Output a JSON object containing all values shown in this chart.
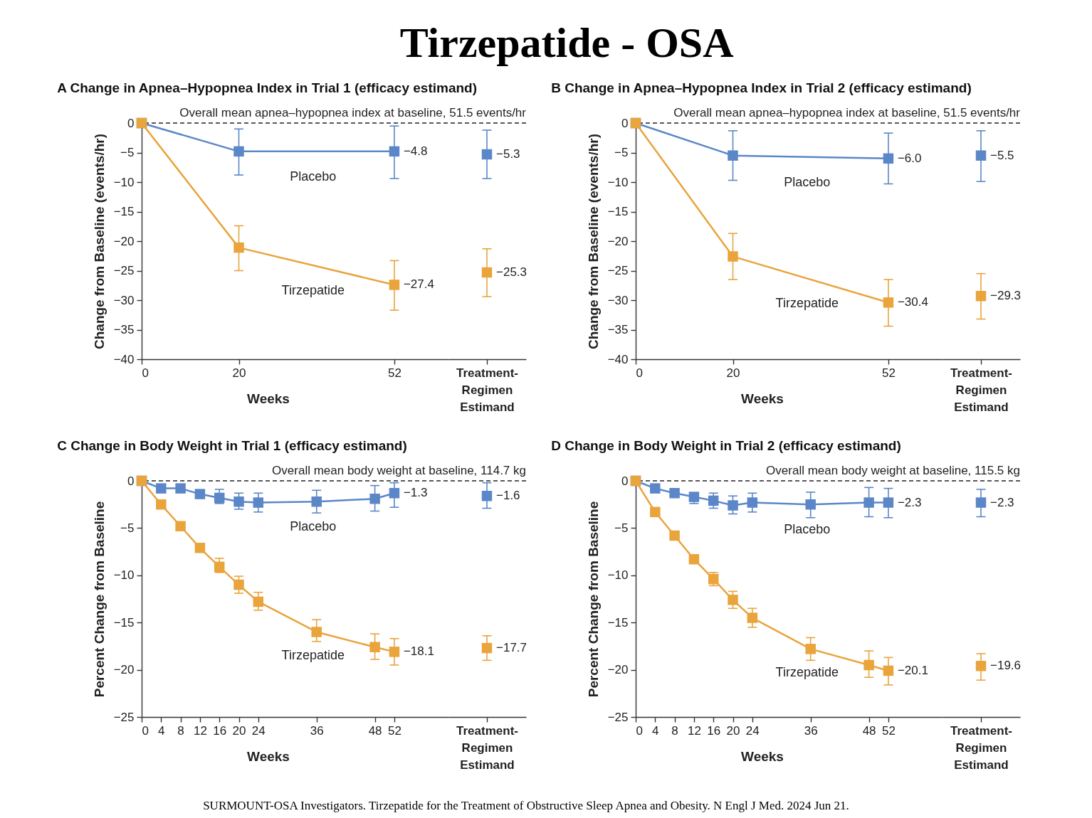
{
  "chart_data": [
    {
      "type": "other",
      "title": "Tirzepatide - OSA",
      "annotations": [
        "SURMOUNT-OSA Investigators. Tirzepatide for the Treatment of Obstructive Sleep Apnea and Obesity. N Engl J Med. 2024 Jun 21."
      ]
    },
    {
      "type": "line",
      "title": "A Change in Apnea–Hypopnea Index in Trial 1 (efficacy estimand)",
      "xlabel": "Weeks",
      "ylabel": "Change from Baseline (events/hr)",
      "xlim": [
        0,
        63
      ],
      "xticks": [
        0,
        20,
        52
      ],
      "ylim": [
        -40,
        0
      ],
      "yticks": [
        0,
        -5,
        -10,
        -15,
        -20,
        -25,
        -30,
        -35,
        -40
      ],
      "marker": "square",
      "line_style": "solid",
      "ref_lines": [
        {
          "axis": "y",
          "value": 0,
          "color": "#222222",
          "line_style": "dashed"
        }
      ],
      "series": [
        {
          "name": "Placebo",
          "color": "#5b87c8",
          "x": [
            0,
            20,
            52
          ],
          "values": [
            0,
            -4.8,
            -4.8
          ],
          "errors": [
            null,
            [
              -8.8,
              -1.0
            ],
            [
              -9.4,
              -0.5
            ]
          ],
          "value_labels": [
            null,
            null,
            "−4.8"
          ]
        },
        {
          "name": "Tirzepatide",
          "color": "#e9a43c",
          "x": [
            0,
            20,
            52
          ],
          "values": [
            0,
            -21.1,
            -27.4
          ],
          "errors": [
            null,
            [
              -25.0,
              -17.4
            ],
            [
              -31.7,
              -23.3
            ]
          ],
          "value_labels": [
            null,
            null,
            "−27.4"
          ]
        }
      ]
    },
    {
      "type": "scatter",
      "categories": [
        "Treatment-Regimen Estimand"
      ],
      "ylim": [
        -40,
        0
      ],
      "yticks": [
        0,
        -5,
        -10,
        -15,
        -20,
        -25,
        -30,
        -35,
        -40
      ],
      "tick_labels": "x",
      "marker": "square",
      "ref_lines": [
        {
          "axis": "y",
          "value": 0,
          "label": "Overall mean apnea–hypopnea index at baseline, 51.5 events/hr",
          "color": "#222222",
          "line_style": "dashed"
        }
      ],
      "series": [
        {
          "color": "#5b87c8",
          "values": [
            -5.3
          ],
          "errors": [
            [
              -9.4,
              -1.2
            ]
          ],
          "value_labels": [
            "−5.3"
          ]
        },
        {
          "color": "#e9a43c",
          "values": [
            -25.3
          ],
          "errors": [
            [
              -29.4,
              -21.3
            ]
          ],
          "value_labels": [
            "−25.3"
          ]
        }
      ]
    },
    {
      "type": "line",
      "title": "B Change in Apnea–Hypopnea Index in Trial 2 (efficacy estimand)",
      "xlabel": "Weeks",
      "ylabel": "Change from Baseline (events/hr)",
      "xlim": [
        0,
        63
      ],
      "xticks": [
        0,
        20,
        52
      ],
      "ylim": [
        -40,
        0
      ],
      "yticks": [
        0,
        -5,
        -10,
        -15,
        -20,
        -25,
        -30,
        -35,
        -40
      ],
      "marker": "square",
      "line_style": "solid",
      "ref_lines": [
        {
          "axis": "y",
          "value": 0,
          "color": "#222222",
          "line_style": "dashed"
        }
      ],
      "series": [
        {
          "name": "Placebo",
          "color": "#5b87c8",
          "x": [
            0,
            20,
            52
          ],
          "values": [
            0,
            -5.5,
            -6.0
          ],
          "errors": [
            null,
            [
              -9.7,
              -1.3
            ],
            [
              -10.3,
              -1.7
            ]
          ],
          "value_labels": [
            null,
            null,
            "−6.0"
          ]
        },
        {
          "name": "Tirzepatide",
          "color": "#e9a43c",
          "x": [
            0,
            20,
            52
          ],
          "values": [
            0,
            -22.6,
            -30.4
          ],
          "errors": [
            null,
            [
              -26.5,
              -18.7
            ],
            [
              -34.4,
              -26.5
            ]
          ],
          "value_labels": [
            null,
            null,
            "−30.4"
          ]
        }
      ]
    },
    {
      "type": "scatter",
      "categories": [
        "Treatment-Regimen Estimand"
      ],
      "ylim": [
        -40,
        0
      ],
      "yticks": [
        0,
        -5,
        -10,
        -15,
        -20,
        -25,
        -30,
        -35,
        -40
      ],
      "tick_labels": "x",
      "marker": "square",
      "ref_lines": [
        {
          "axis": "y",
          "value": 0,
          "label": "Overall mean apnea–hypopnea index at baseline, 51.5 events/hr",
          "color": "#222222",
          "line_style": "dashed"
        }
      ],
      "series": [
        {
          "color": "#5b87c8",
          "values": [
            -5.5
          ],
          "errors": [
            [
              -9.9,
              -1.3
            ]
          ],
          "value_labels": [
            "−5.5"
          ]
        },
        {
          "color": "#e9a43c",
          "values": [
            -29.3
          ],
          "errors": [
            [
              -33.2,
              -25.5
            ]
          ],
          "value_labels": [
            "−29.3"
          ]
        }
      ]
    },
    {
      "type": "line",
      "title": "C Change in Body Weight in Trial 1 (efficacy estimand)",
      "xlabel": "Weeks",
      "ylabel": "Percent Change from Baseline",
      "xlim": [
        0,
        63
      ],
      "xticks": [
        0,
        4,
        8,
        12,
        16,
        20,
        24,
        36,
        48,
        52
      ],
      "ylim": [
        -25,
        0
      ],
      "yticks": [
        0,
        -5,
        -10,
        -15,
        -20,
        -25
      ],
      "marker": "square",
      "line_style": "solid",
      "ref_lines": [
        {
          "axis": "y",
          "value": 0,
          "color": "#222222",
          "line_style": "dashed"
        }
      ],
      "series": [
        {
          "name": "Placebo",
          "color": "#5b87c8",
          "x": [
            0,
            4,
            8,
            12,
            16,
            20,
            24,
            36,
            48,
            52
          ],
          "values": [
            0,
            -0.8,
            -0.8,
            -1.4,
            -1.8,
            -2.2,
            -2.3,
            -2.2,
            -1.9,
            -1.3
          ],
          "errors": [
            null,
            null,
            null,
            null,
            [
              -2.4,
              -0.9
            ],
            [
              -3.0,
              -1.3
            ],
            [
              -3.3,
              -1.3
            ],
            [
              -3.4,
              -1.0
            ],
            [
              -3.2,
              -0.5
            ],
            [
              -2.8,
              -0.2
            ]
          ],
          "value_labels": [
            null,
            null,
            null,
            null,
            null,
            null,
            null,
            null,
            null,
            "−1.3"
          ]
        },
        {
          "name": "Tirzepatide",
          "color": "#e9a43c",
          "x": [
            0,
            4,
            8,
            12,
            16,
            20,
            24,
            36,
            48,
            52
          ],
          "values": [
            0,
            -2.5,
            -4.8,
            -7.1,
            -9.1,
            -11.0,
            -12.8,
            -16.0,
            -17.6,
            -18.1
          ],
          "errors": [
            null,
            null,
            null,
            null,
            [
              -9.7,
              -8.2
            ],
            [
              -11.9,
              -10.1
            ],
            [
              -13.7,
              -11.8
            ],
            [
              -17.0,
              -14.7
            ],
            [
              -18.9,
              -16.2
            ],
            [
              -19.5,
              -16.7
            ]
          ],
          "value_labels": [
            null,
            null,
            null,
            null,
            null,
            null,
            null,
            null,
            null,
            "−18.1"
          ]
        }
      ]
    },
    {
      "type": "scatter",
      "categories": [
        "Treatment-Regimen Estimand"
      ],
      "ylim": [
        -25,
        0
      ],
      "yticks": [
        0,
        -5,
        -10,
        -15,
        -20,
        -25
      ],
      "tick_labels": "x",
      "marker": "square",
      "ref_lines": [
        {
          "axis": "y",
          "value": 0,
          "label": "Overall mean body weight at baseline, 114.7 kg",
          "color": "#222222",
          "line_style": "dashed"
        }
      ],
      "series": [
        {
          "color": "#5b87c8",
          "values": [
            -1.6
          ],
          "errors": [
            [
              -2.9,
              -0.2
            ]
          ],
          "value_labels": [
            "−1.6"
          ]
        },
        {
          "color": "#e9a43c",
          "values": [
            -17.7
          ],
          "errors": [
            [
              -19.0,
              -16.4
            ]
          ],
          "value_labels": [
            "−17.7"
          ]
        }
      ]
    },
    {
      "type": "line",
      "title": "D Change in Body Weight in Trial 2 (efficacy estimand)",
      "xlabel": "Weeks",
      "ylabel": "Percent Change from Baseline",
      "xlim": [
        0,
        63
      ],
      "xticks": [
        0,
        4,
        8,
        12,
        16,
        20,
        24,
        36,
        48,
        52
      ],
      "ylim": [
        -25,
        0
      ],
      "yticks": [
        0,
        -5,
        -10,
        -15,
        -20,
        -25
      ],
      "marker": "square",
      "line_style": "solid",
      "ref_lines": [
        {
          "axis": "y",
          "value": 0,
          "color": "#222222",
          "line_style": "dashed"
        }
      ],
      "series": [
        {
          "name": "Placebo",
          "color": "#5b87c8",
          "x": [
            0,
            4,
            8,
            12,
            16,
            20,
            24,
            36,
            48,
            52
          ],
          "values": [
            0,
            -0.8,
            -1.3,
            -1.7,
            -2.1,
            -2.6,
            -2.3,
            -2.5,
            -2.3,
            -2.3
          ],
          "errors": [
            null,
            null,
            null,
            [
              -2.4,
              -1.4
            ],
            [
              -2.9,
              -1.3
            ],
            [
              -3.5,
              -1.6
            ],
            [
              -3.3,
              -1.3
            ],
            [
              -3.9,
              -1.2
            ],
            [
              -3.8,
              -0.7
            ],
            [
              -3.9,
              -0.8
            ]
          ],
          "value_labels": [
            null,
            null,
            null,
            null,
            null,
            null,
            null,
            null,
            null,
            "−2.3"
          ]
        },
        {
          "name": "Tirzepatide",
          "color": "#e9a43c",
          "x": [
            0,
            4,
            8,
            12,
            16,
            20,
            24,
            36,
            48,
            52
          ],
          "values": [
            0,
            -3.3,
            -5.8,
            -8.3,
            -10.4,
            -12.6,
            -14.5,
            -17.8,
            -19.5,
            -20.1
          ],
          "errors": [
            null,
            null,
            null,
            null,
            [
              -11.1,
              -9.7
            ],
            [
              -13.5,
              -11.7
            ],
            [
              -15.5,
              -13.5
            ],
            [
              -19.0,
              -16.6
            ],
            [
              -20.8,
              -18.0
            ],
            [
              -21.6,
              -18.7
            ]
          ],
          "value_labels": [
            null,
            null,
            null,
            null,
            null,
            null,
            null,
            null,
            null,
            "−20.1"
          ]
        }
      ]
    },
    {
      "type": "scatter",
      "categories": [
        "Treatment-Regimen Estimand"
      ],
      "ylim": [
        -25,
        0
      ],
      "yticks": [
        0,
        -5,
        -10,
        -15,
        -20,
        -25
      ],
      "tick_labels": "x",
      "marker": "square",
      "ref_lines": [
        {
          "axis": "y",
          "value": 0,
          "label": "Overall mean body weight at baseline, 115.5 kg",
          "color": "#222222",
          "line_style": "dashed"
        }
      ],
      "series": [
        {
          "color": "#5b87c8",
          "values": [
            -2.3
          ],
          "errors": [
            [
              -3.8,
              -0.9
            ]
          ],
          "value_labels": [
            "−2.3"
          ]
        },
        {
          "color": "#e9a43c",
          "values": [
            -19.6
          ],
          "errors": [
            [
              -21.1,
              -18.3
            ]
          ],
          "value_labels": [
            "−19.6"
          ]
        }
      ]
    }
  ]
}
